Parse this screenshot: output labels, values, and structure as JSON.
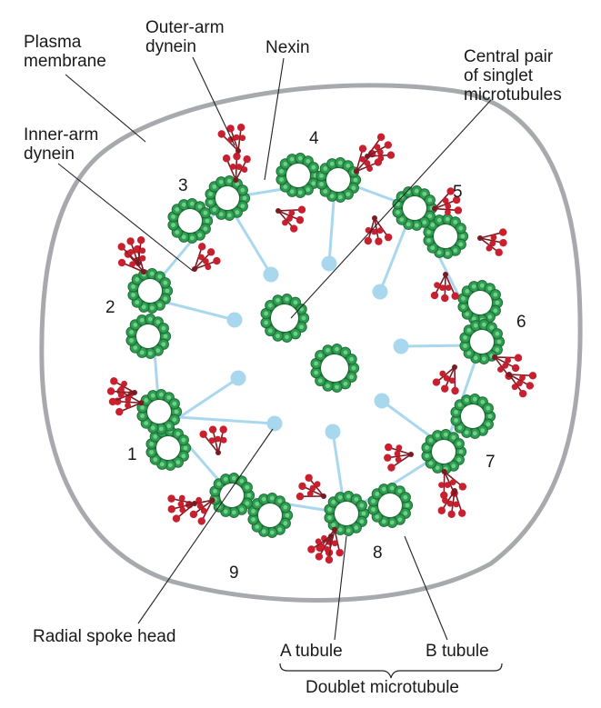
{
  "labels": {
    "plasma_membrane": [
      "Plasma",
      "membrane"
    ],
    "outer_arm_dynein": [
      "Outer-arm",
      "dynein"
    ],
    "nexin": "Nexin",
    "central_pair": [
      "Central pair",
      "of singlet",
      "microtubules"
    ],
    "inner_arm_dynein": [
      "Inner-arm",
      "dynein"
    ],
    "radial_spoke_head": "Radial spoke head",
    "a_tubule": "A tubule",
    "b_tubule": "B tubule",
    "doublet_microtubule": "Doublet microtubule"
  },
  "doublet_numbers": [
    "1",
    "2",
    "3",
    "4",
    "5",
    "6",
    "7",
    "8",
    "9"
  ],
  "colors": {
    "membrane": "#a7a9ac",
    "tubule_fill": "#2e9e52",
    "tubule_dot": "#6fcf87",
    "tubule_edge": "#1f6b36",
    "spoke": "#a9d8ee",
    "dynein": "#c8202f",
    "dynein_stalk": "#7a1a22"
  }
}
